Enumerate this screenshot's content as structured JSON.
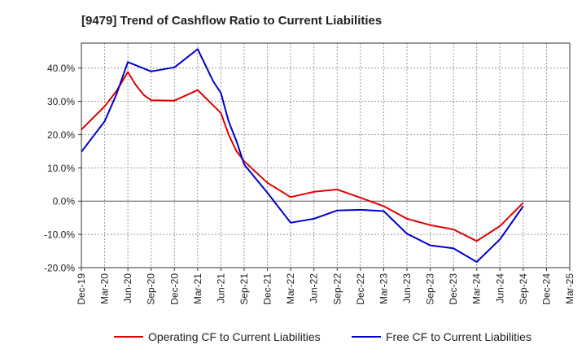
{
  "chart_data": {
    "type": "line",
    "title": "[9479]  Trend of Cashflow Ratio to Current Liabilities",
    "xlabel": "",
    "ylabel": "",
    "ylim": [
      -20,
      47.5
    ],
    "y_ticks": [
      -20,
      -10,
      0,
      10,
      20,
      30,
      40
    ],
    "y_tick_format": "{v}.0%",
    "x_tick_labels": [
      "Dec-19",
      "Mar-20",
      "Jun-20",
      "Sep-20",
      "Dec-20",
      "Mar-21",
      "Jun-21",
      "Sep-21",
      "Dec-21",
      "Mar-22",
      "Jun-22",
      "Sep-22",
      "Dec-22",
      "Mar-23",
      "Jun-23",
      "Sep-23",
      "Dec-23",
      "Mar-24",
      "Jun-24",
      "Sep-24",
      "Dec-24",
      "Mar-25"
    ],
    "grid": true,
    "legend_position": "bottom",
    "series": [
      {
        "name": "Operating CF to Current Liabilities",
        "color": "#e00000",
        "points": [
          [
            0,
            21.5
          ],
          [
            1,
            28.5
          ],
          [
            1.5,
            33.0
          ],
          [
            2,
            38.8
          ],
          [
            2.33,
            35.0
          ],
          [
            2.67,
            32.0
          ],
          [
            3,
            30.3
          ],
          [
            4,
            30.2
          ],
          [
            5,
            33.4
          ],
          [
            6,
            26.5
          ],
          [
            6.33,
            20.0
          ],
          [
            6.67,
            15.0
          ],
          [
            7,
            12.0
          ],
          [
            8,
            5.5
          ],
          [
            9,
            1.2
          ],
          [
            10,
            2.8
          ],
          [
            11,
            3.5
          ],
          [
            12,
            1.0
          ],
          [
            13,
            -1.5
          ],
          [
            14,
            -5.3
          ],
          [
            15,
            -7.2
          ],
          [
            16,
            -8.5
          ],
          [
            17,
            -12.0
          ],
          [
            18,
            -7.5
          ],
          [
            18.5,
            -4.0
          ],
          [
            19,
            -0.5
          ]
        ]
      },
      {
        "name": "Free CF to Current Liabilities",
        "color": "#0000cc",
        "points": [
          [
            0,
            14.8
          ],
          [
            1,
            24.0
          ],
          [
            1.5,
            32.0
          ],
          [
            2,
            41.8
          ],
          [
            3,
            39.0
          ],
          [
            4,
            40.2
          ],
          [
            5,
            45.7
          ],
          [
            5.67,
            36.0
          ],
          [
            6,
            32.5
          ],
          [
            6.33,
            24.0
          ],
          [
            6.67,
            18.0
          ],
          [
            7,
            11.0
          ],
          [
            8,
            2.5
          ],
          [
            9,
            -6.5
          ],
          [
            10,
            -5.3
          ],
          [
            11,
            -2.8
          ],
          [
            12,
            -2.6
          ],
          [
            13,
            -3.0
          ],
          [
            14,
            -9.8
          ],
          [
            15,
            -13.3
          ],
          [
            16,
            -14.2
          ],
          [
            17,
            -18.3
          ],
          [
            18,
            -11.5
          ],
          [
            19,
            -1.5
          ]
        ]
      }
    ]
  }
}
